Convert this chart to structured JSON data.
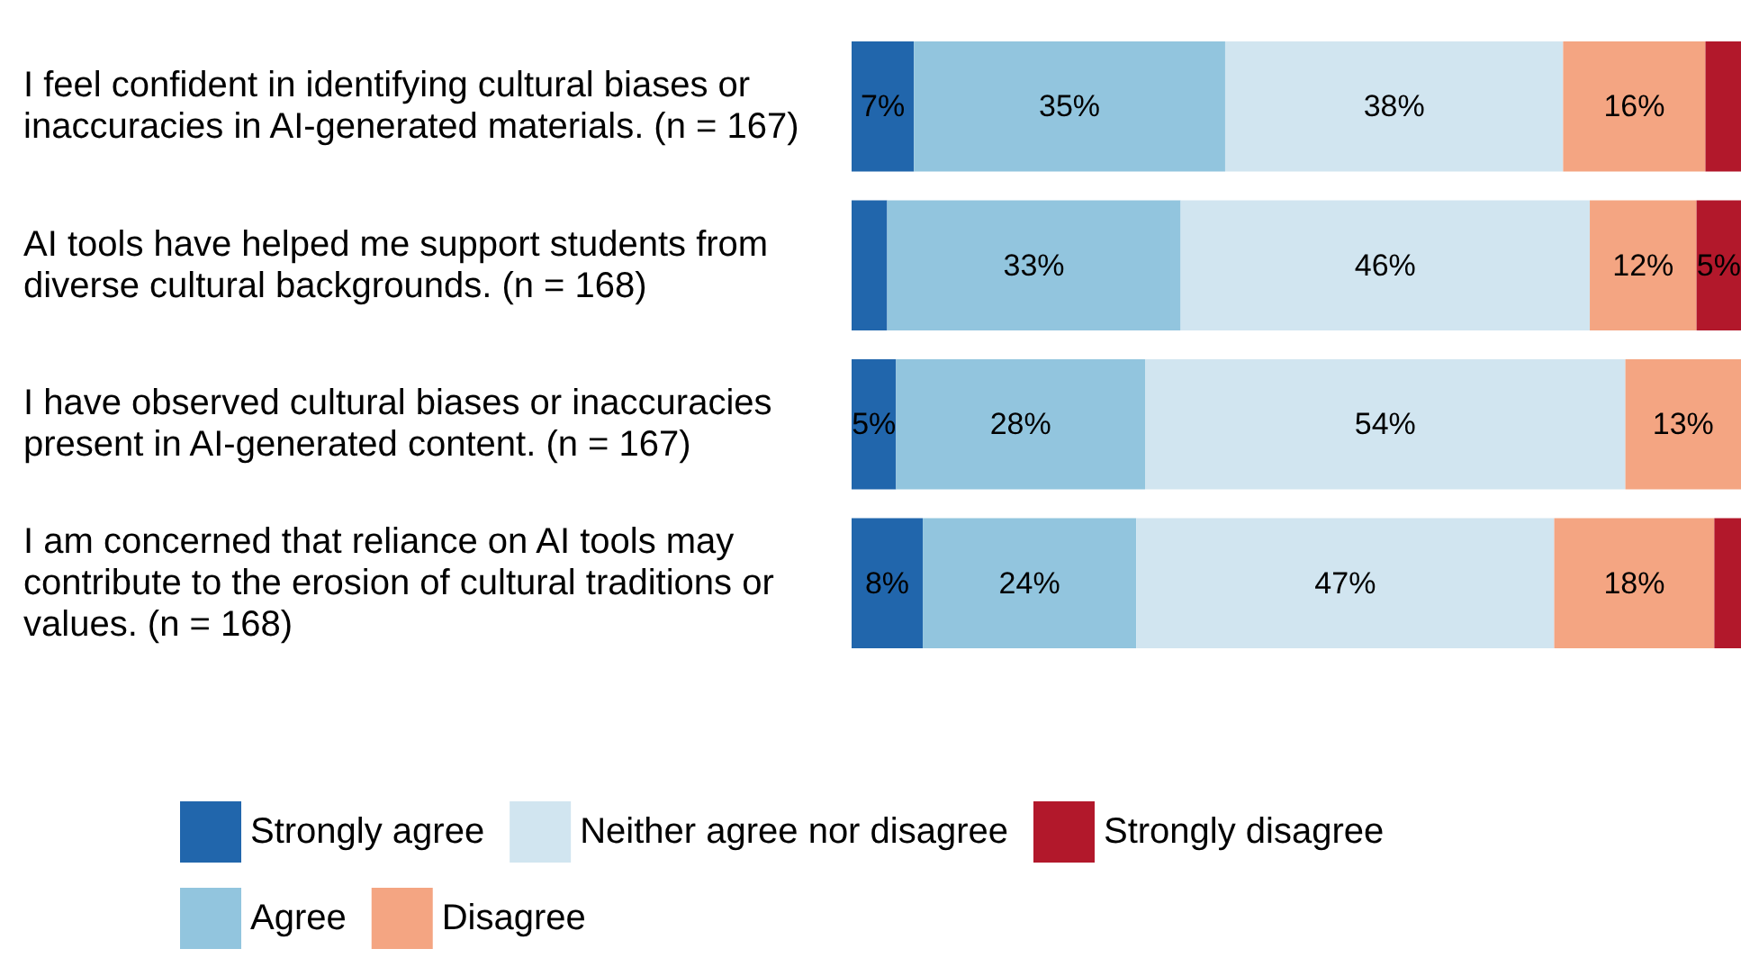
{
  "chart_data": {
    "type": "bar",
    "orientation": "horizontal",
    "stacked": true,
    "categories": [
      "I feel confident in identifying cultural biases or inaccuracies in AI-generated materials. (n = 167)",
      "AI tools have helped me support students from diverse cultural backgrounds. (n = 168)",
      "I have observed cultural biases or inaccuracies present in AI-generated content. (n = 167)",
      "I am concerned that reliance on AI tools may contribute to the erosion of cultural traditions or values. (n = 168)"
    ],
    "series": [
      {
        "name": "Strongly agree",
        "color": "#2166ac",
        "values": [
          7,
          4,
          5,
          8
        ],
        "value_labels": [
          "7%",
          null,
          "5%",
          "8%"
        ]
      },
      {
        "name": "Agree",
        "color": "#92c5de",
        "values": [
          35,
          33,
          28,
          24
        ],
        "value_labels": [
          "35%",
          "33%",
          "28%",
          "24%"
        ]
      },
      {
        "name": "Neither agree nor disagree",
        "color": "#d1e5f0",
        "values": [
          38,
          46,
          54,
          47
        ],
        "value_labels": [
          "38%",
          "46%",
          "54%",
          "47%"
        ]
      },
      {
        "name": "Disagree",
        "color": "#f4a582",
        "values": [
          16,
          12,
          13,
          18
        ],
        "value_labels": [
          "16%",
          "12%",
          "13%",
          "18%"
        ]
      },
      {
        "name": "Strongly disagree",
        "color": "#b2182b",
        "values": [
          4,
          5,
          0,
          3
        ],
        "value_labels": [
          null,
          "5%",
          null,
          null
        ]
      }
    ],
    "xlim": [
      0,
      100
    ],
    "tick_labels": "y",
    "grid": false,
    "legend": "bottom"
  }
}
